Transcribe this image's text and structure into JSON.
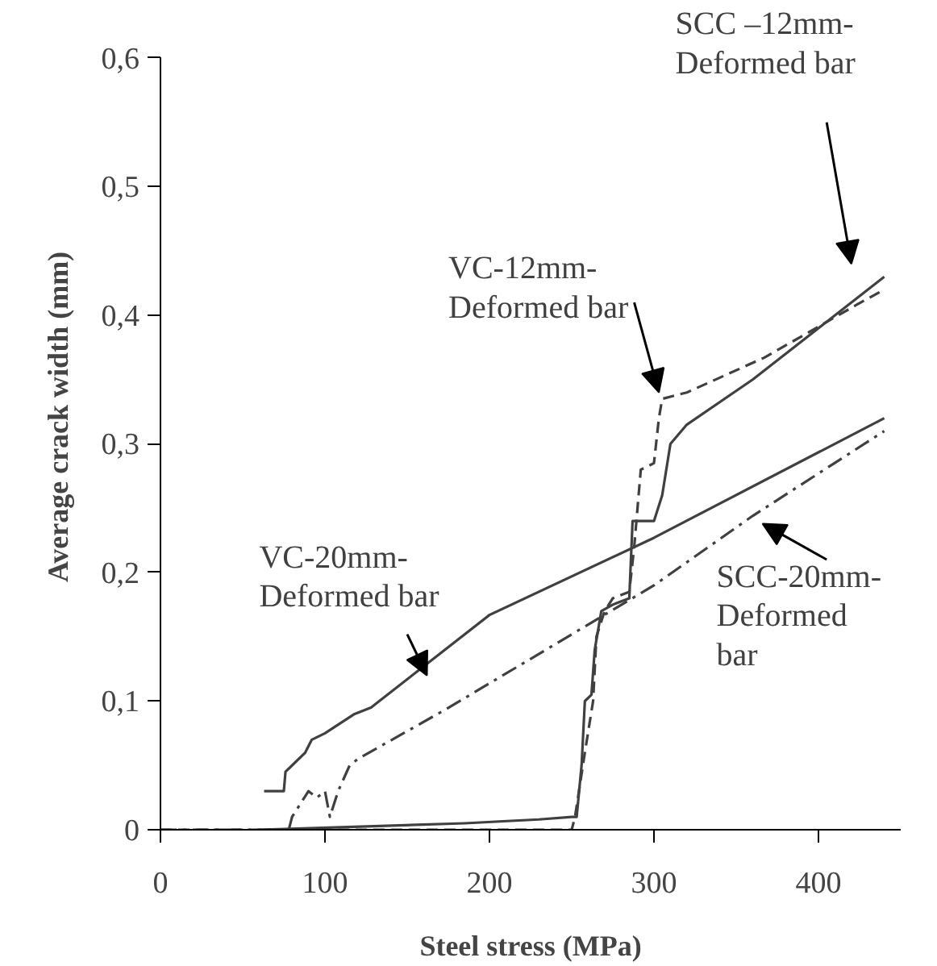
{
  "chart_data": {
    "type": "line",
    "xlabel": "Steel stress (MPa)",
    "ylabel": "Average crack width (mm)",
    "xlim": [
      0,
      450
    ],
    "xticks": [
      0,
      100,
      200,
      300,
      400
    ],
    "ylim": [
      0,
      0.6
    ],
    "yticks": [
      {
        "value": 0,
        "label": "0"
      },
      {
        "value": 0.1,
        "label": "0,1"
      },
      {
        "value": 0.2,
        "label": "0,2"
      },
      {
        "value": 0.3,
        "label": "0,3"
      },
      {
        "value": 0.4,
        "label": "0,4"
      },
      {
        "value": 0.5,
        "label": "0,5"
      },
      {
        "value": 0.6,
        "label": "0,6"
      }
    ],
    "grid": false,
    "marker": "none",
    "series": [
      {
        "name": "VC-20mm-\nDeformed bar",
        "color": "#404040",
        "line_style": "solid",
        "x": [
          63,
          75,
          76,
          80,
          88,
          92,
          100,
          106,
          112,
          118,
          128,
          133,
          200,
          300,
          440
        ],
        "values": [
          0.03,
          0.03,
          0.045,
          0.05,
          0.06,
          0.07,
          0.075,
          0.08,
          0.085,
          0.09,
          0.095,
          0.1,
          0.167,
          0.227,
          0.32
        ]
      },
      {
        "name": "SCC-20mm-\nDeformed\nbar",
        "color": "#404040",
        "line_style": "dashdot",
        "x": [
          0,
          78,
          80,
          85,
          90,
          95,
          100,
          103,
          108,
          115,
          120,
          174,
          300,
          360,
          440
        ],
        "values": [
          0,
          0,
          0.01,
          0.02,
          0.03,
          0.025,
          0.03,
          0.01,
          0.03,
          0.05,
          0.055,
          0.094,
          0.19,
          0.244,
          0.31
        ]
      },
      {
        "name": "VC-12mm-\nDeformed bar",
        "color": "#404040",
        "line_style": "dashed",
        "x": [
          0,
          250,
          252,
          258,
          263,
          265,
          270,
          275,
          285,
          288,
          290,
          292,
          300,
          303,
          305,
          320,
          367,
          423,
          440
        ],
        "values": [
          0,
          0,
          0.01,
          0.06,
          0.1,
          0.15,
          0.17,
          0.18,
          0.185,
          0.22,
          0.25,
          0.28,
          0.285,
          0.32,
          0.335,
          0.34,
          0.367,
          0.408,
          0.42
        ]
      },
      {
        "name": "SCC –12mm-\nDeformed bar",
        "color": "#404040",
        "line_style": "solid",
        "x": [
          60,
          110,
          185,
          230,
          250,
          253,
          256,
          258,
          262,
          264,
          268,
          275,
          285,
          287,
          295,
          300,
          305,
          310,
          320,
          360,
          400,
          440
        ],
        "values": [
          0,
          0.002,
          0.005,
          0.008,
          0.01,
          0.01,
          0.05,
          0.1,
          0.105,
          0.14,
          0.17,
          0.175,
          0.18,
          0.24,
          0.24,
          0.24,
          0.26,
          0.3,
          0.315,
          0.35,
          0.39,
          0.43
        ]
      }
    ]
  }
}
